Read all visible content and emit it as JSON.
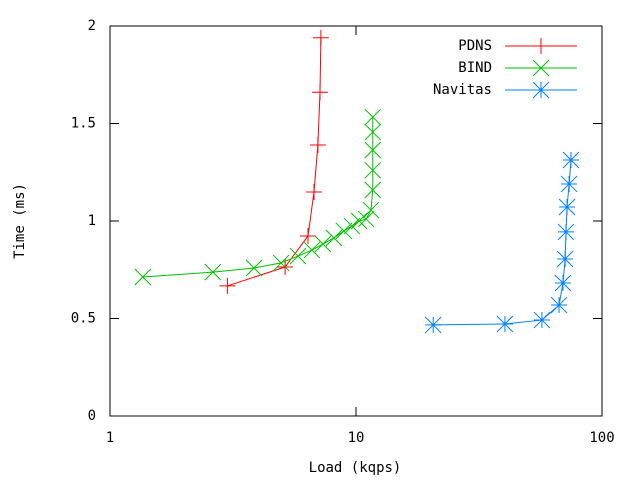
{
  "chart_data": {
    "type": "line",
    "xlabel": "Load (kqps)",
    "ylabel": "Time (ms)",
    "xscale": "log",
    "xlim": [
      1,
      100
    ],
    "xticks": [
      1,
      10,
      100
    ],
    "ylim": [
      0,
      2
    ],
    "yticks": [
      0,
      0.5,
      1,
      1.5,
      2
    ],
    "legend": "upper right",
    "series": [
      {
        "name": "PDNS",
        "color": "#ff0000",
        "marker": "plus",
        "x": [
          3.0,
          5.15,
          6.38,
          6.75,
          7.0,
          7.14,
          7.2
        ],
        "values": [
          0.667,
          0.764,
          0.923,
          1.149,
          1.39,
          1.66,
          1.94
        ]
      },
      {
        "name": "BIND",
        "color": "#00c000",
        "marker": "cross",
        "x": [
          1.36,
          2.62,
          3.85,
          4.96,
          5.81,
          6.62,
          7.34,
          8.14,
          8.93,
          9.63,
          10.3,
          11.0,
          11.5,
          11.7,
          11.7,
          11.7,
          11.7,
          11.7
        ],
        "values": [
          0.713,
          0.738,
          0.759,
          0.785,
          0.82,
          0.851,
          0.882,
          0.913,
          0.949,
          0.974,
          1.0,
          1.01,
          1.056,
          1.159,
          1.26,
          1.364,
          1.456,
          1.533
        ]
      },
      {
        "name": "Navitas",
        "color": "#0080ff",
        "marker": "star",
        "x": [
          20.6,
          40.3,
          57.0,
          66.9,
          69.4,
          70.8,
          71.4,
          72.1,
          73.5,
          74.8
        ],
        "values": [
          0.467,
          0.472,
          0.492,
          0.569,
          0.682,
          0.805,
          0.944,
          1.072,
          1.19,
          1.313
        ]
      }
    ]
  }
}
